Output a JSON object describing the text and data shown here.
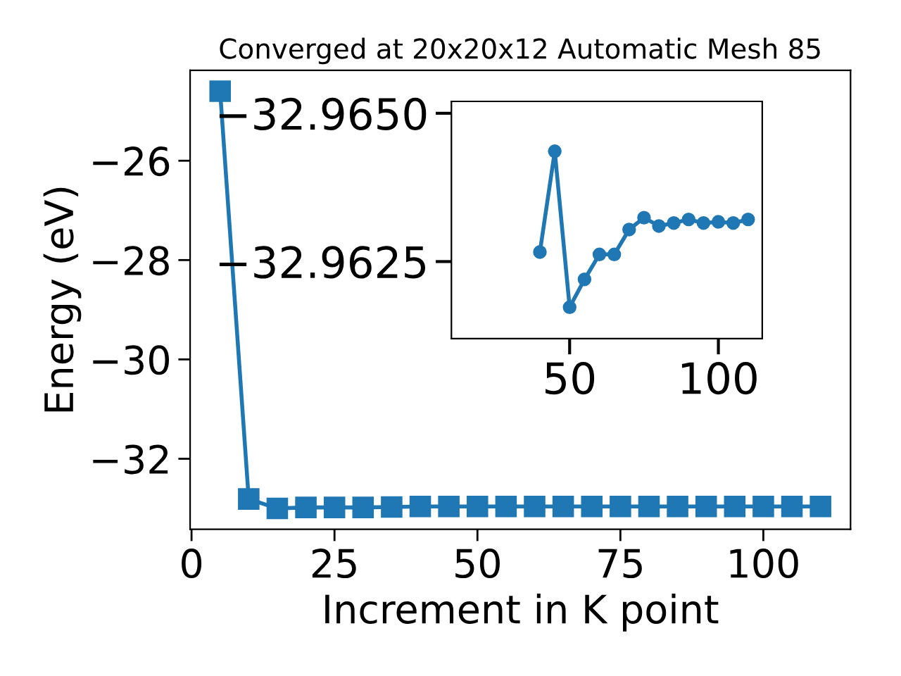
{
  "chart_data": [
    {
      "type": "line",
      "title": "Converged at 20x20x12 Automatic Mesh 85",
      "xlabel": "Increment in K point",
      "ylabel": "Energy (eV)",
      "x": [
        5,
        10,
        15,
        20,
        25,
        30,
        35,
        40,
        45,
        50,
        55,
        60,
        65,
        70,
        75,
        80,
        85,
        90,
        95,
        100,
        105,
        110
      ],
      "series": [
        {
          "color": "#1f77b4",
          "values": [
            -24.6,
            -32.81,
            -33.0,
            -32.98,
            -32.98,
            -32.98,
            -32.97,
            -32.96,
            -32.96,
            -32.96,
            -32.96,
            -32.96,
            -32.96,
            -32.96,
            -32.96,
            -32.96,
            -32.96,
            -32.96,
            -32.96,
            -32.96,
            -32.96,
            -32.96
          ]
        }
      ],
      "marker": "square",
      "line_style": "solid",
      "xlim": [
        -0.25,
        115.25
      ],
      "ylim": [
        -33.42,
        -24.18
      ],
      "xticks": [
        0,
        25,
        50,
        75,
        100
      ],
      "yticks": [
        {
          "value": -32,
          "label": "−32"
        },
        {
          "value": -30,
          "label": "−30"
        },
        {
          "value": -28,
          "label": "−28"
        },
        {
          "value": -26,
          "label": "−26"
        }
      ],
      "grid": false,
      "legend": false
    },
    {
      "type": "line",
      "x": [
        40,
        45,
        50,
        55,
        60,
        65,
        70,
        75,
        80,
        85,
        90,
        95,
        100,
        105,
        110
      ],
      "series": [
        {
          "color": "#1f77b4",
          "values": [
            -32.96266,
            -32.96436,
            -32.96173,
            -32.9622,
            -32.96262,
            -32.96262,
            -32.96304,
            -32.96324,
            -32.9631,
            -32.96315,
            -32.96321,
            -32.96315,
            -32.96317,
            -32.96315,
            -32.96321
          ]
        }
      ],
      "marker": "circle",
      "line_style": "solid",
      "xlim": [
        10.25,
        114.75
      ],
      "ylim": [
        -32.9612,
        -32.9652
      ],
      "xticks": [
        50,
        100
      ],
      "yticks": [
        {
          "value": -32.965,
          "label": "−32.9650"
        },
        {
          "value": -32.9625,
          "label": "−32.9625"
        }
      ],
      "grid": false,
      "legend": false
    }
  ]
}
